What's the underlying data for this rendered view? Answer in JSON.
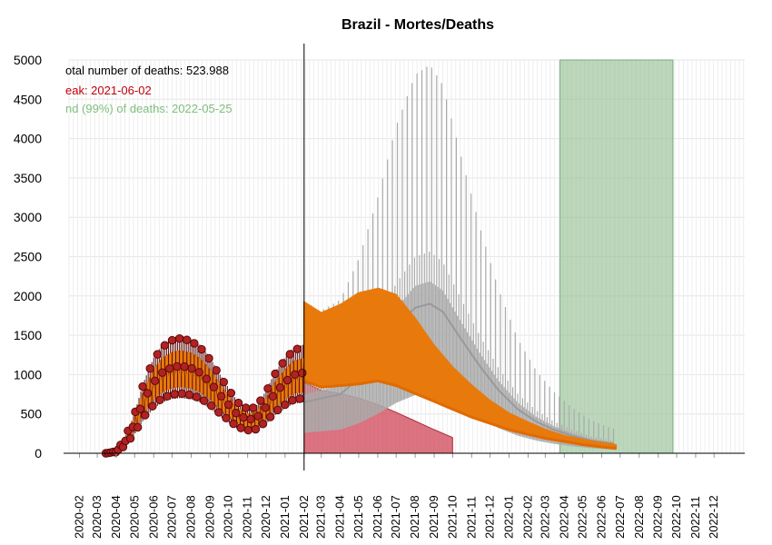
{
  "chart_data": {
    "type": "line",
    "title": "Brazil - Mortes/Deaths",
    "xlabel": "",
    "ylabel": "",
    "ylim": [
      0,
      5000
    ],
    "y_ticks": [
      0,
      500,
      1000,
      1500,
      2000,
      2500,
      3000,
      3500,
      4000,
      4500,
      5000
    ],
    "x_ticks": [
      "2020-02",
      "2020-03",
      "2020-04",
      "2020-05",
      "2020-06",
      "2020-07",
      "2020-08",
      "2020-09",
      "2020-10",
      "2020-11",
      "2020-12",
      "2021-01",
      "2021-02",
      "2021-03",
      "2021-04",
      "2021-05",
      "2021-06",
      "2021-07",
      "2021-08",
      "2021-09",
      "2021-10",
      "2021-11",
      "2021-12",
      "2022-01",
      "2022-02",
      "2022-03",
      "2022-04",
      "2022-05",
      "2022-06",
      "2022-07",
      "2022-08",
      "2022-09",
      "2022-10",
      "2022-11",
      "2022-12"
    ],
    "grid": true,
    "annotations": {
      "total": "otal number of deaths: 523.988",
      "peak": "eak: 2021-06-02",
      "end": "nd (99%) of deaths: 2022-05-25"
    },
    "forecast_start": "2021-02",
    "end_band": {
      "from": "2022-03-25",
      "to": "2022-09-25"
    },
    "observed_daily_deaths": [
      {
        "x": "2020-03-15",
        "y": 0
      },
      {
        "x": "2020-04-01",
        "y": 20
      },
      {
        "x": "2020-04-15",
        "y": 150
      },
      {
        "x": "2020-05-01",
        "y": 400
      },
      {
        "x": "2020-05-15",
        "y": 700
      },
      {
        "x": "2020-06-01",
        "y": 950
      },
      {
        "x": "2020-06-15",
        "y": 1080
      },
      {
        "x": "2020-07-01",
        "y": 1150
      },
      {
        "x": "2020-07-15",
        "y": 1170
      },
      {
        "x": "2020-08-01",
        "y": 1140
      },
      {
        "x": "2020-08-15",
        "y": 1080
      },
      {
        "x": "2020-09-01",
        "y": 950
      },
      {
        "x": "2020-09-15",
        "y": 800
      },
      {
        "x": "2020-10-01",
        "y": 650
      },
      {
        "x": "2020-10-15",
        "y": 520
      },
      {
        "x": "2020-11-01",
        "y": 450
      },
      {
        "x": "2020-11-15",
        "y": 470
      },
      {
        "x": "2020-12-01",
        "y": 620
      },
      {
        "x": "2020-12-15",
        "y": 800
      },
      {
        "x": "2021-01-01",
        "y": 950
      },
      {
        "x": "2021-01-15",
        "y": 1050
      },
      {
        "x": "2021-02-01",
        "y": 1080
      }
    ],
    "forecast_mean": [
      {
        "x": "2021-02-01",
        "y": 1680
      },
      {
        "x": "2021-03-01",
        "y": 1560
      },
      {
        "x": "2021-04-01",
        "y": 1650
      },
      {
        "x": "2021-05-01",
        "y": 1780
      },
      {
        "x": "2021-06-02",
        "y": 1830
      },
      {
        "x": "2021-07-01",
        "y": 1760
      },
      {
        "x": "2021-08-01",
        "y": 1500
      },
      {
        "x": "2021-09-01",
        "y": 1200
      },
      {
        "x": "2021-10-01",
        "y": 960
      },
      {
        "x": "2021-11-01",
        "y": 760
      },
      {
        "x": "2021-12-01",
        "y": 590
      },
      {
        "x": "2022-01-01",
        "y": 450
      },
      {
        "x": "2022-02-01",
        "y": 350
      },
      {
        "x": "2022-03-01",
        "y": 270
      },
      {
        "x": "2022-04-01",
        "y": 200
      },
      {
        "x": "2022-05-01",
        "y": 160
      },
      {
        "x": "2022-06-01",
        "y": 120
      },
      {
        "x": "2022-06-25",
        "y": 100
      }
    ],
    "delayed_scenario_mean": [
      {
        "x": "2021-02-01",
        "y": 650
      },
      {
        "x": "2021-04-01",
        "y": 750
      },
      {
        "x": "2021-05-01",
        "y": 950
      },
      {
        "x": "2021-06-01",
        "y": 1250
      },
      {
        "x": "2021-07-01",
        "y": 1600
      },
      {
        "x": "2021-08-01",
        "y": 1850
      },
      {
        "x": "2021-08-25",
        "y": 1900
      },
      {
        "x": "2021-09-15",
        "y": 1800
      },
      {
        "x": "2021-10-15",
        "y": 1450
      },
      {
        "x": "2021-11-15",
        "y": 1100
      },
      {
        "x": "2021-12-15",
        "y": 800
      },
      {
        "x": "2022-01-15",
        "y": 560
      },
      {
        "x": "2022-02-15",
        "y": 400
      },
      {
        "x": "2022-03-15",
        "y": 300
      },
      {
        "x": "2022-04-15",
        "y": 220
      },
      {
        "x": "2022-05-15",
        "y": 160
      },
      {
        "x": "2022-06-20",
        "y": 120
      }
    ],
    "peak_area": [
      {
        "x": "2021-02-01",
        "y": 900
      },
      {
        "x": "2021-03-01",
        "y": 800
      },
      {
        "x": "2021-04-01",
        "y": 760
      },
      {
        "x": "2021-05-01",
        "y": 700
      },
      {
        "x": "2021-06-01",
        "y": 620
      },
      {
        "x": "2021-07-01",
        "y": 520
      },
      {
        "x": "2021-08-01",
        "y": 410
      },
      {
        "x": "2021-09-01",
        "y": 300
      },
      {
        "x": "2021-10-01",
        "y": 200
      }
    ],
    "lower_bound_line": [
      {
        "x": "2021-02-01",
        "y": 920
      },
      {
        "x": "2021-03-01",
        "y": 840
      },
      {
        "x": "2021-04-01",
        "y": 860
      },
      {
        "x": "2021-05-01",
        "y": 880
      },
      {
        "x": "2021-06-01",
        "y": 920
      },
      {
        "x": "2021-07-01",
        "y": 860
      },
      {
        "x": "2021-08-01",
        "y": 760
      },
      {
        "x": "2021-09-01",
        "y": 660
      },
      {
        "x": "2021-10-01",
        "y": 560
      },
      {
        "x": "2021-11-01",
        "y": 460
      },
      {
        "x": "2021-12-01",
        "y": 380
      },
      {
        "x": "2022-01-01",
        "y": 300
      },
      {
        "x": "2022-02-01",
        "y": 240
      },
      {
        "x": "2022-03-01",
        "y": 190
      },
      {
        "x": "2022-04-01",
        "y": 150
      },
      {
        "x": "2022-05-01",
        "y": 110
      },
      {
        "x": "2022-06-01",
        "y": 80
      },
      {
        "x": "2022-06-25",
        "y": 60
      }
    ],
    "colors": {
      "observed_points": "#b22222",
      "forecast": "#e87a0d",
      "delayed_scenario": "#aaaaaa",
      "peak_area": "#d25060",
      "end_band": "#8fbc8f",
      "annotation_total": "#000000",
      "annotation_peak": "#c0000c",
      "annotation_end": "#7fbf7f"
    }
  }
}
